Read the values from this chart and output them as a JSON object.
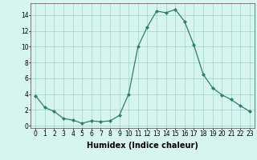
{
  "x": [
    0,
    1,
    2,
    3,
    4,
    5,
    6,
    7,
    8,
    9,
    10,
    11,
    12,
    13,
    14,
    15,
    16,
    17,
    18,
    19,
    20,
    21,
    22,
    23
  ],
  "y": [
    3.8,
    2.3,
    1.8,
    0.9,
    0.7,
    0.3,
    0.6,
    0.5,
    0.6,
    1.3,
    4.0,
    10.0,
    12.5,
    14.5,
    14.3,
    14.7,
    13.2,
    10.2,
    6.5,
    4.8,
    3.9,
    3.3,
    2.5,
    1.8
  ],
  "line_color": "#2e7d6e",
  "marker": "D",
  "marker_size": 2,
  "bg_color": "#d6f5ee",
  "grid_color": "#aad8ce",
  "xlabel": "Humidex (Indice chaleur)",
  "xlabel_fontsize": 7,
  "xlabel_weight": "bold",
  "yticks": [
    0,
    2,
    4,
    6,
    8,
    10,
    12,
    14
  ],
  "ylim": [
    -0.3,
    15.5
  ],
  "xlim": [
    -0.5,
    23.5
  ],
  "tick_fontsize": 5.5
}
